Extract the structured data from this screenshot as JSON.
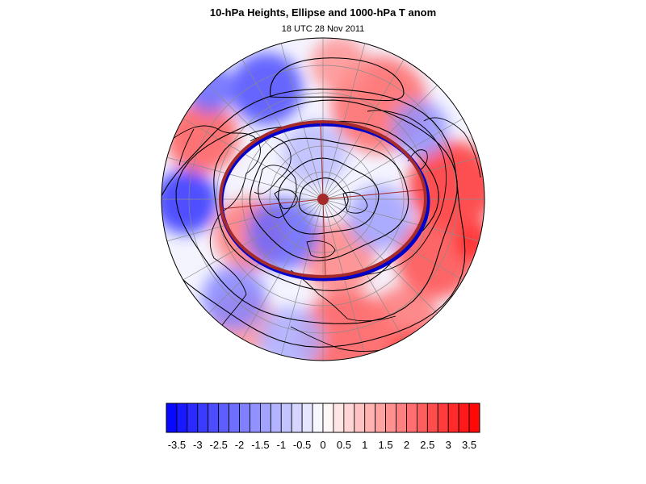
{
  "title": "10-hPa Heights, Ellipse and 1000-hPa T anom",
  "subtitle": "18 UTC 28 Nov 2011",
  "colorbar": {
    "min": -3.75,
    "max": 3.75,
    "step": 0.25,
    "tick_labels": [
      "-3.5",
      "-3",
      "-2.5",
      "-2",
      "-1.5",
      "-1",
      "-0.5",
      "0",
      "0.5",
      "1",
      "1.5",
      "2",
      "2.5",
      "3",
      "3.5"
    ],
    "tick_values": [
      -3.5,
      -3,
      -2.5,
      -2,
      -1.5,
      -1,
      -0.5,
      0,
      0.5,
      1,
      1.5,
      2,
      2.5,
      3,
      3.5
    ],
    "low_color": "#0000ff",
    "mid_color": "#ffffff",
    "high_color": "#ff0000"
  },
  "map": {
    "projection": "polar-stereographic-north",
    "ellipse_color": "#a52a2a",
    "contour_color": "#000000",
    "coastline_color": "#000000",
    "gridline_color": "#808080"
  }
}
